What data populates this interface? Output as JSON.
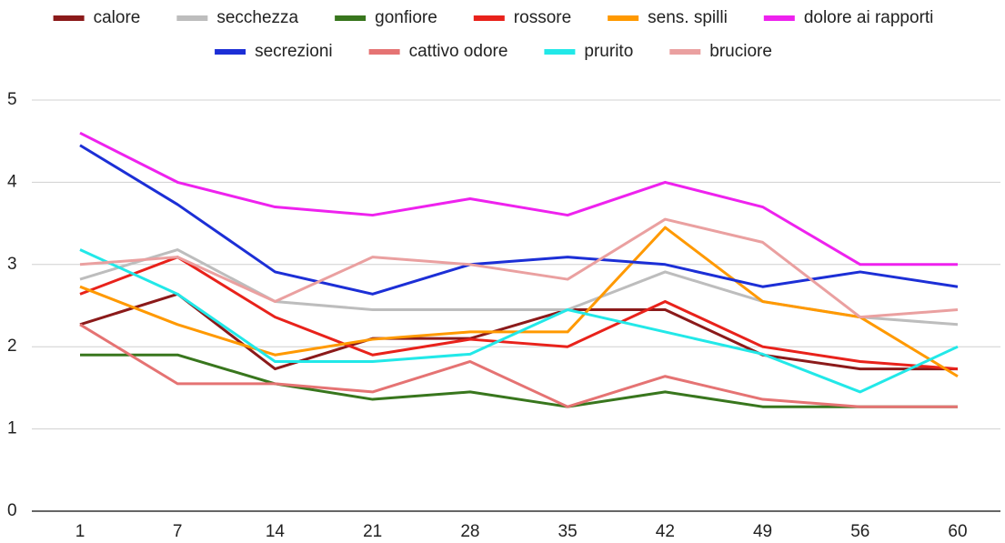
{
  "chart_data": {
    "type": "line",
    "categories": [
      "1",
      "7",
      "14",
      "21",
      "28",
      "35",
      "42",
      "49",
      "56",
      "60"
    ],
    "series": [
      {
        "name": "calore",
        "color": "#8b1a1a",
        "values": [
          2.27,
          2.64,
          1.73,
          2.1,
          2.1,
          2.45,
          2.45,
          1.9,
          1.73,
          1.73
        ]
      },
      {
        "name": "secchezza",
        "color": "#bdbdbd",
        "values": [
          2.82,
          3.18,
          2.55,
          2.45,
          2.45,
          2.45,
          2.91,
          2.55,
          2.36,
          2.27
        ]
      },
      {
        "name": "gonfiore",
        "color": "#38761d",
        "values": [
          1.9,
          1.9,
          1.55,
          1.36,
          1.45,
          1.27,
          1.45,
          1.27,
          1.27,
          1.27
        ]
      },
      {
        "name": "rossore",
        "color": "#e8221b",
        "values": [
          2.64,
          3.09,
          2.36,
          1.9,
          2.09,
          2.0,
          2.55,
          2.0,
          1.82,
          1.73
        ]
      },
      {
        "name": "sens. spilli",
        "color": "#ff9900",
        "values": [
          2.73,
          2.27,
          1.9,
          2.09,
          2.18,
          2.18,
          3.45,
          2.55,
          2.36,
          1.64
        ]
      },
      {
        "name": "dolore ai rapporti",
        "color": "#ee22ee",
        "values": [
          4.6,
          4.0,
          3.7,
          3.6,
          3.8,
          3.6,
          4.0,
          3.7,
          3.0,
          3.0
        ]
      },
      {
        "name": "secrezioni",
        "color": "#1c2fd6",
        "values": [
          4.45,
          3.73,
          2.91,
          2.64,
          3.0,
          3.09,
          3.0,
          2.73,
          2.91,
          2.73
        ]
      },
      {
        "name": "cattivo odore",
        "color": "#e57373",
        "values": [
          2.27,
          1.55,
          1.55,
          1.45,
          1.82,
          1.27,
          1.64,
          1.36,
          1.27,
          1.27
        ]
      },
      {
        "name": "prurito",
        "color": "#22e8e8",
        "values": [
          3.18,
          2.64,
          1.82,
          1.82,
          1.91,
          2.45,
          2.18,
          1.91,
          1.45,
          2.0
        ]
      },
      {
        "name": "bruciore",
        "color": "#eaa0a0",
        "values": [
          3.0,
          3.09,
          2.55,
          3.09,
          3.0,
          2.82,
          3.55,
          3.27,
          2.36,
          2.45
        ]
      }
    ],
    "ylim": [
      0,
      5
    ],
    "yticks": [
      0,
      1,
      2,
      3,
      4,
      5
    ],
    "grid": true,
    "legend": "top"
  }
}
